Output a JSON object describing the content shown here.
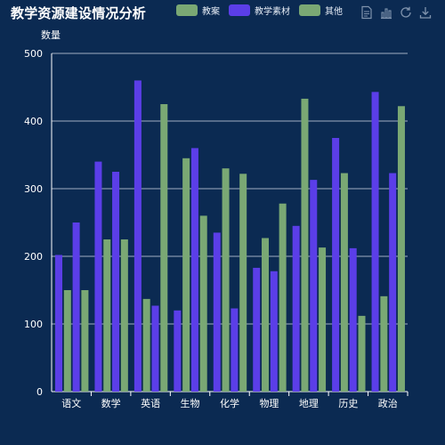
{
  "title": "教学资源建设情况分析",
  "legend": [
    {
      "name": "教案",
      "color": "#7aa874"
    },
    {
      "name": "教学素材",
      "color": "#5b3ee8"
    },
    {
      "name": "其他",
      "color": "#7aa874"
    }
  ],
  "toolbox": [
    {
      "name": "data-view-icon"
    },
    {
      "name": "bar-chart-icon"
    },
    {
      "name": "refresh-icon"
    },
    {
      "name": "download-icon"
    }
  ],
  "chart_data": {
    "type": "bar",
    "title": "教学资源建设情况分析",
    "ylabel": "数量",
    "xlabel": "",
    "ylim": [
      0,
      500
    ],
    "yticks": [
      0,
      100,
      200,
      300,
      400,
      500
    ],
    "grid": true,
    "legend_position": "top",
    "categories": [
      "语文",
      "数学",
      "英语",
      "生物",
      "化学",
      "物理",
      "地理",
      "历史",
      "政治"
    ],
    "series": [
      {
        "name": "",
        "color": "#5b3ee8",
        "values": [
          202,
          340,
          460,
          120,
          235,
          183,
          245,
          375,
          443
        ]
      },
      {
        "name": "",
        "color": "#7aa874",
        "values": [
          150,
          225,
          137,
          345,
          330,
          227,
          433,
          323,
          141
        ]
      },
      {
        "name": "",
        "color": "#5b3ee8",
        "values": [
          250,
          325,
          127,
          360,
          123,
          178,
          313,
          212,
          323
        ]
      },
      {
        "name": "",
        "color": "#7aa874",
        "values": [
          150,
          225,
          425,
          260,
          322,
          278,
          213,
          112,
          422
        ]
      }
    ]
  }
}
